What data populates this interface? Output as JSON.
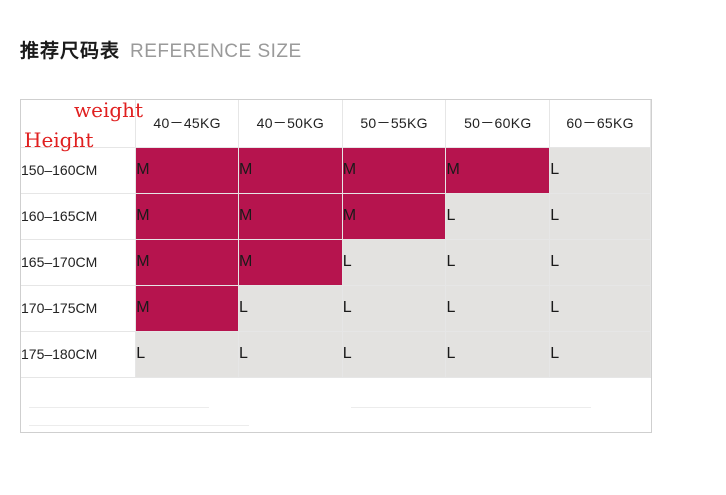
{
  "title": {
    "cn": "推荐尺码表",
    "en": "REFERENCE SIZE"
  },
  "corner": {
    "weight_label": "weight",
    "height_label": "Height"
  },
  "weights": [
    "40－45KG",
    "40－50KG",
    "50－55KG",
    "50－60KG",
    "60－65KG"
  ],
  "rows": [
    {
      "height": "150–160CM",
      "sizes": [
        "M",
        "M",
        "M",
        "M",
        "L"
      ]
    },
    {
      "height": "160–165CM",
      "sizes": [
        "M",
        "M",
        "M",
        "L",
        "L"
      ]
    },
    {
      "height": "165–170CM",
      "sizes": [
        "M",
        "M",
        "L",
        "L",
        "L"
      ]
    },
    {
      "height": "170–175CM",
      "sizes": [
        "M",
        "L",
        "L",
        "L",
        "L"
      ]
    },
    {
      "height": "175–180CM",
      "sizes": [
        "L",
        "L",
        "L",
        "L",
        "L"
      ]
    }
  ],
  "colors": {
    "size_M_fill": "#b6144e",
    "size_L_fill": "#e3e2e0",
    "annotation_red": "#e02020"
  }
}
